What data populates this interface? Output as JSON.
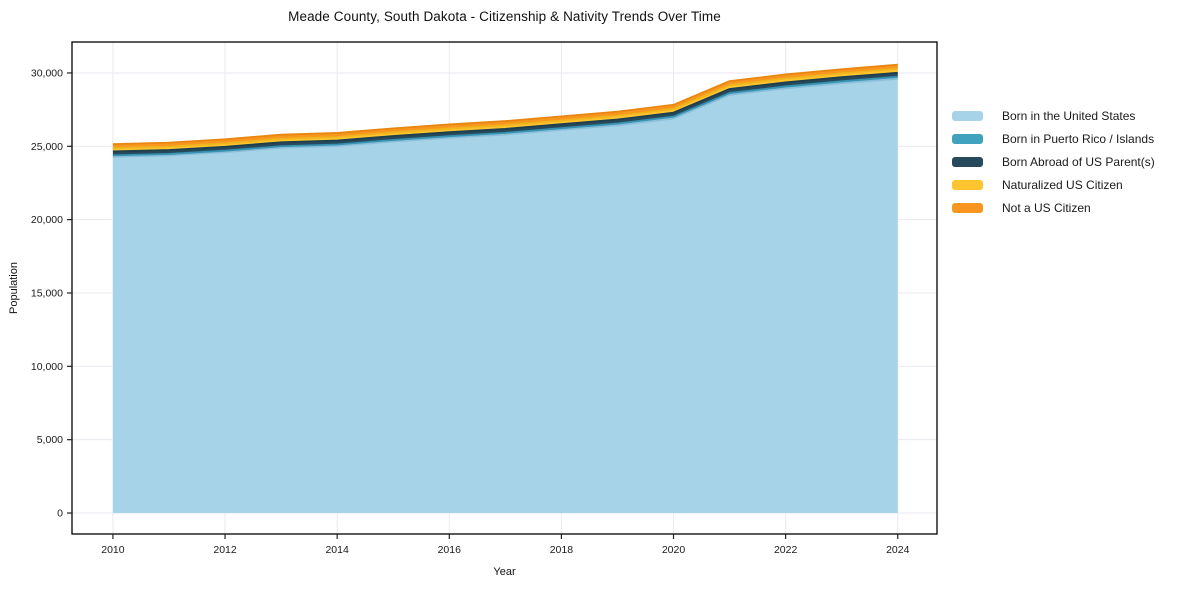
{
  "chart_data": {
    "type": "area",
    "stacked": true,
    "title": "Meade County, South Dakota - Citizenship & Nativity Trends Over Time",
    "xlabel": "Year",
    "ylabel": "Population",
    "grid": true,
    "legend_position": "right-outside",
    "x": [
      2010,
      2011,
      2012,
      2013,
      2014,
      2015,
      2016,
      2017,
      2018,
      2019,
      2020,
      2021,
      2022,
      2023,
      2024
    ],
    "series": [
      {
        "name": "Born in the United States",
        "color": "#a7d3e8",
        "edge_color": "#8abfda",
        "values": [
          24280,
          24380,
          24600,
          24900,
          25020,
          25320,
          25580,
          25800,
          26120,
          26430,
          26900,
          28500,
          28950,
          29300,
          29600
        ]
      },
      {
        "name": "Born in Puerto Rico / Islands",
        "color": "#41a2c0",
        "edge_color": "#3892b1",
        "values": [
          100,
          100,
          100,
          105,
          105,
          110,
          110,
          115,
          115,
          120,
          120,
          130,
          130,
          135,
          140
        ]
      },
      {
        "name": "Born Abroad of US Parent(s)",
        "color": "#264a5c",
        "edge_color": "#1f3e4e",
        "values": [
          270,
          270,
          270,
          270,
          270,
          270,
          275,
          275,
          275,
          275,
          275,
          275,
          275,
          275,
          275
        ]
      },
      {
        "name": "Naturalized US Citizen",
        "color": "#fdc42f",
        "edge_color": "#f0b41c",
        "values": [
          230,
          230,
          235,
          240,
          240,
          245,
          245,
          250,
          250,
          255,
          255,
          260,
          265,
          265,
          270
        ]
      },
      {
        "name": "Not a US Citizen",
        "color": "#f8961f",
        "edge_color": "#e8860f",
        "values": [
          270,
          270,
          275,
          275,
          275,
          275,
          280,
          280,
          280,
          280,
          280,
          280,
          280,
          280,
          280
        ]
      }
    ],
    "x_ticks": [
      2010,
      2012,
      2014,
      2016,
      2018,
      2020,
      2022,
      2024
    ],
    "y_ticks": [
      0,
      5000,
      10000,
      15000,
      20000,
      25000,
      30000
    ],
    "y_tick_labels": [
      "0",
      "5,000",
      "10,000",
      "15,000",
      "20,000",
      "25,000",
      "30,000"
    ],
    "xlim": [
      2009.27,
      2024.7
    ],
    "ylim": [
      -1430,
      32110
    ],
    "colors": {
      "grid": "#e9e9f0",
      "frame": "#000000",
      "tick": "#222222",
      "text": "#1a1a1a",
      "background": "#ffffff"
    }
  }
}
